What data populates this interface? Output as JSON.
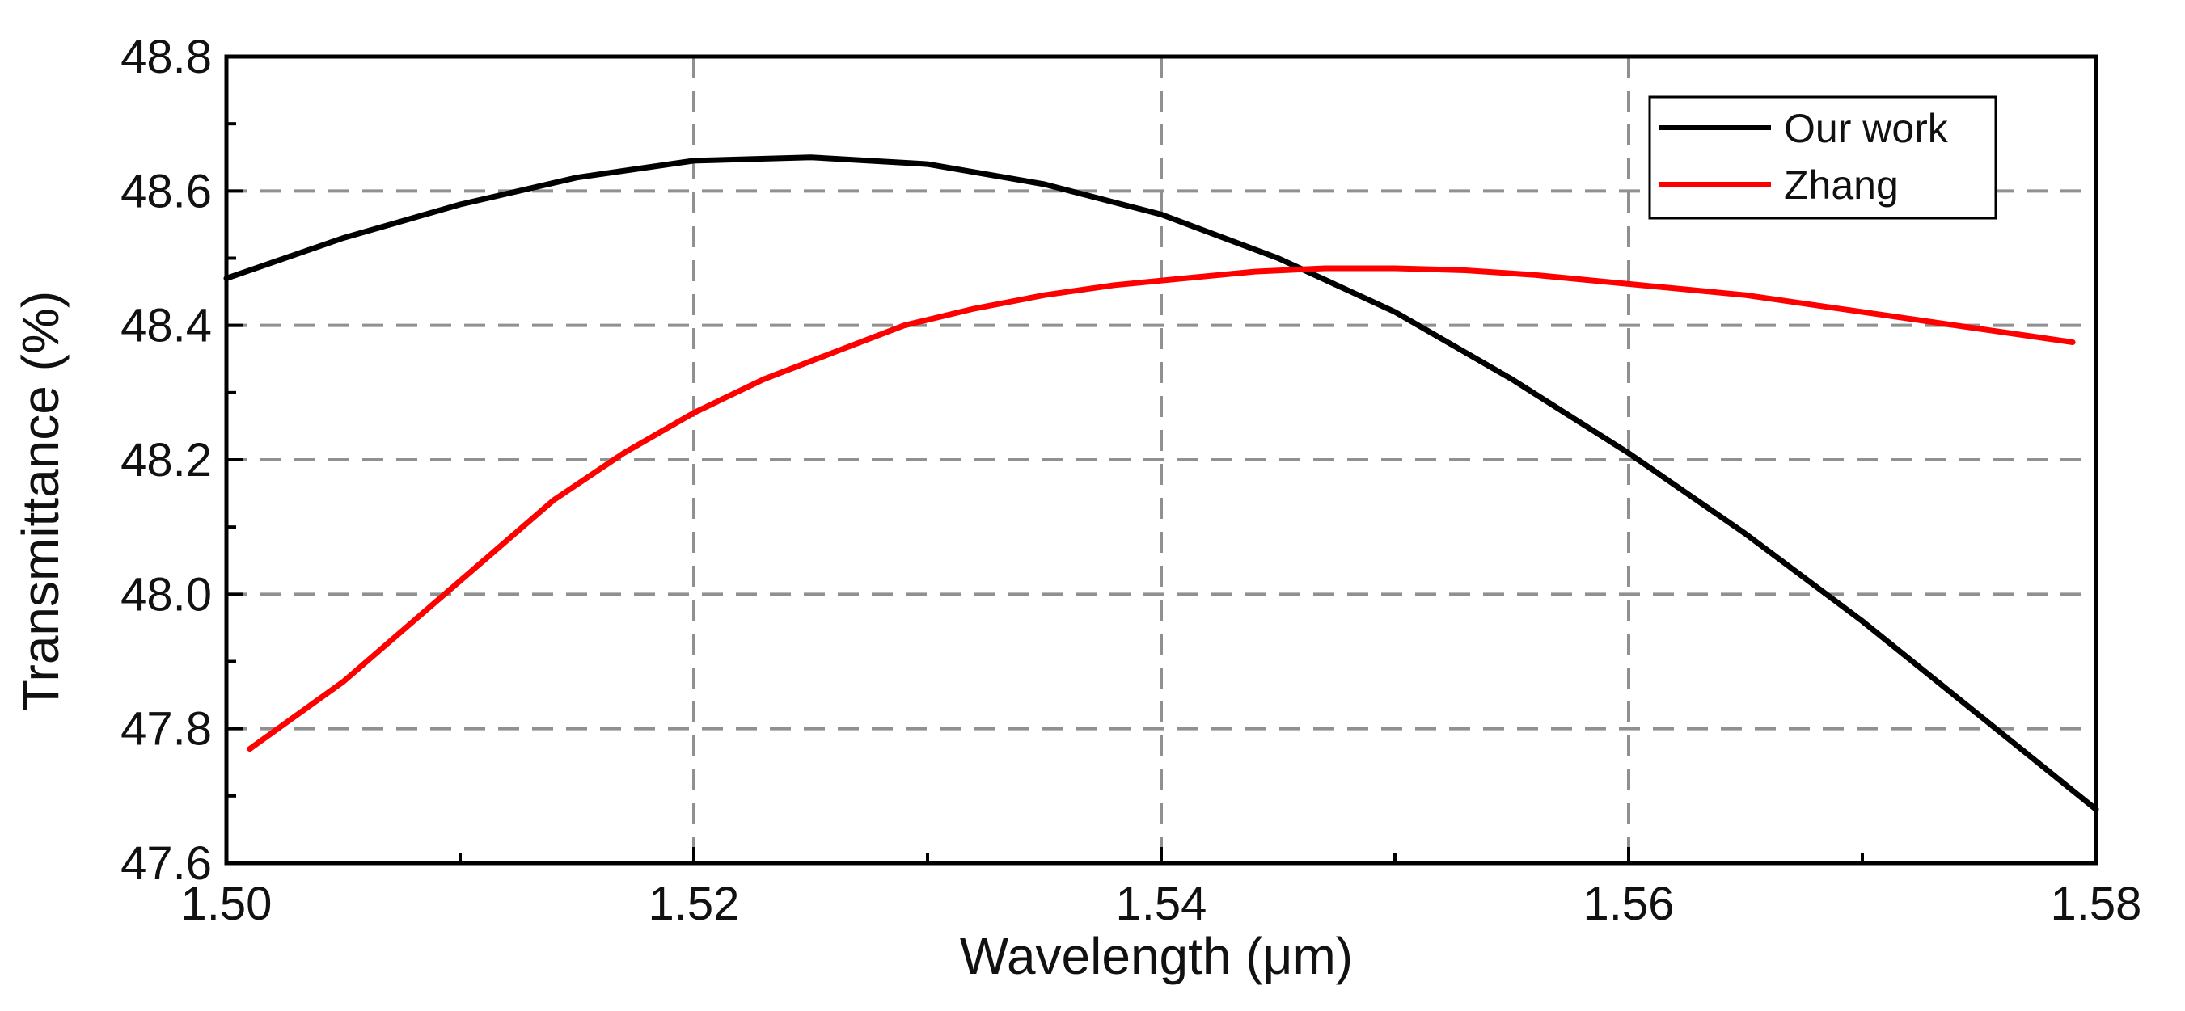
{
  "chart_data": {
    "type": "line",
    "title": "",
    "xlabel": "Wavelength (μm)",
    "ylabel": "Transmittance (%)",
    "xlim": [
      1.5,
      1.58
    ],
    "ylim": [
      47.6,
      48.8
    ],
    "x_ticks": [
      1.5,
      1.52,
      1.54,
      1.56,
      1.58
    ],
    "x_tick_labels": [
      "1.50",
      "1.52",
      "1.54",
      "1.56",
      "1.58"
    ],
    "y_ticks": [
      47.6,
      47.8,
      48.0,
      48.2,
      48.4,
      48.6,
      48.8
    ],
    "y_tick_labels": [
      "47.6",
      "47.8",
      "48.0",
      "48.2",
      "48.4",
      "48.6",
      "48.8"
    ],
    "grid": true,
    "legend_position": "top-right",
    "series": [
      {
        "name": "Our work",
        "color": "#000000",
        "x": [
          1.5,
          1.505,
          1.51,
          1.515,
          1.52,
          1.525,
          1.53,
          1.535,
          1.54,
          1.545,
          1.55,
          1.555,
          1.56,
          1.565,
          1.57,
          1.575,
          1.58
        ],
        "y": [
          48.47,
          48.53,
          48.58,
          48.62,
          48.645,
          48.65,
          48.64,
          48.61,
          48.565,
          48.5,
          48.42,
          48.32,
          48.21,
          48.09,
          47.96,
          47.82,
          47.68
        ]
      },
      {
        "name": "Zhang",
        "color": "#ff0000",
        "x": [
          1.501,
          1.503,
          1.505,
          1.508,
          1.511,
          1.514,
          1.517,
          1.52,
          1.523,
          1.526,
          1.529,
          1.532,
          1.535,
          1.538,
          1.541,
          1.544,
          1.547,
          1.55,
          1.553,
          1.556,
          1.559,
          1.562,
          1.565,
          1.568,
          1.571,
          1.574,
          1.577,
          1.579
        ],
        "y": [
          47.77,
          47.82,
          47.87,
          47.96,
          48.05,
          48.14,
          48.21,
          48.27,
          48.32,
          48.36,
          48.4,
          48.425,
          48.445,
          48.46,
          48.47,
          48.48,
          48.485,
          48.485,
          48.482,
          48.475,
          48.465,
          48.455,
          48.445,
          48.43,
          48.415,
          48.4,
          48.385,
          48.375
        ]
      }
    ]
  }
}
